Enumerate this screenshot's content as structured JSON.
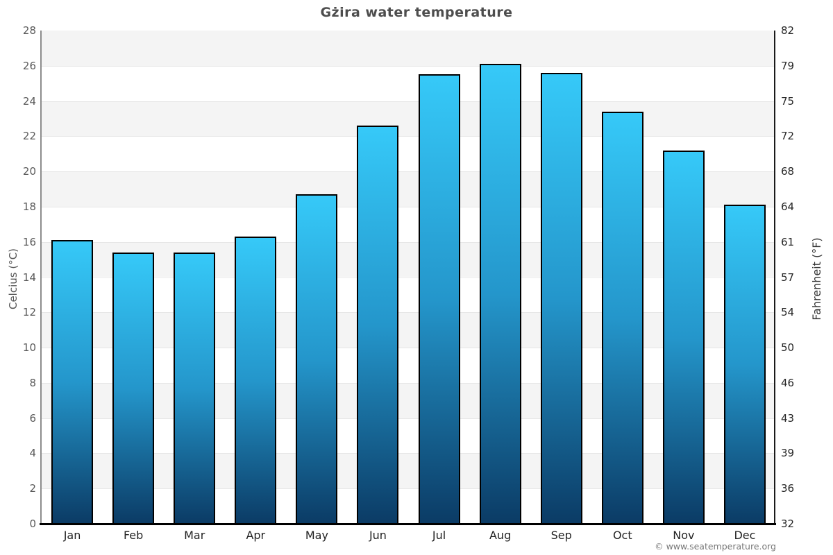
{
  "title": "Gżira water temperature",
  "axes": {
    "left_label": "Celcius (°C)",
    "right_label": "Fahrenheit (°F)"
  },
  "footer": {
    "credit": "© www.seatemperature.org"
  },
  "chart_data": {
    "type": "bar",
    "title": "Gżira water temperature",
    "categories": [
      "Jan",
      "Feb",
      "Mar",
      "Apr",
      "May",
      "Jun",
      "Jul",
      "Aug",
      "Sep",
      "Oct",
      "Nov",
      "Dec"
    ],
    "values": [
      16.1,
      15.4,
      15.4,
      16.3,
      18.7,
      22.6,
      25.5,
      26.1,
      25.6,
      23.4,
      21.2,
      18.1
    ],
    "unit": "°C",
    "xlabel": "",
    "ylabel_left": "Celcius (°C)",
    "ylabel_right": "Fahrenheit (°F)",
    "ylim": [
      0,
      28
    ],
    "celsius_ticks": [
      0,
      2,
      4,
      6,
      8,
      10,
      12,
      14,
      16,
      18,
      20,
      22,
      24,
      26,
      28
    ],
    "fahrenheit_tick_labels": [
      "32",
      "36",
      "39",
      "43",
      "46",
      "50",
      "54",
      "57",
      "61",
      "64",
      "68",
      "72",
      "75",
      "79",
      "82"
    ],
    "grid": "alternating-horizontal-bands-every-2C",
    "legend": "none",
    "colors": {
      "bar_gradient_top": "#36c9f8",
      "bar_gradient_mid": "#2496cb",
      "bar_gradient_bottom": "#0b3b65",
      "bar_border": "#000000",
      "band_fill": "#f4f4f4",
      "gridline": "#e6e6e6",
      "left_axis_line": "#8c8c8c",
      "right_axis_line": "#1a1a1a",
      "bottom_axis_line": "#000000",
      "title_color": "#4d4d4d",
      "left_tick_color": "#595959",
      "right_tick_color": "#262626",
      "month_label_color": "#222222",
      "footer_color": "#777777"
    }
  }
}
